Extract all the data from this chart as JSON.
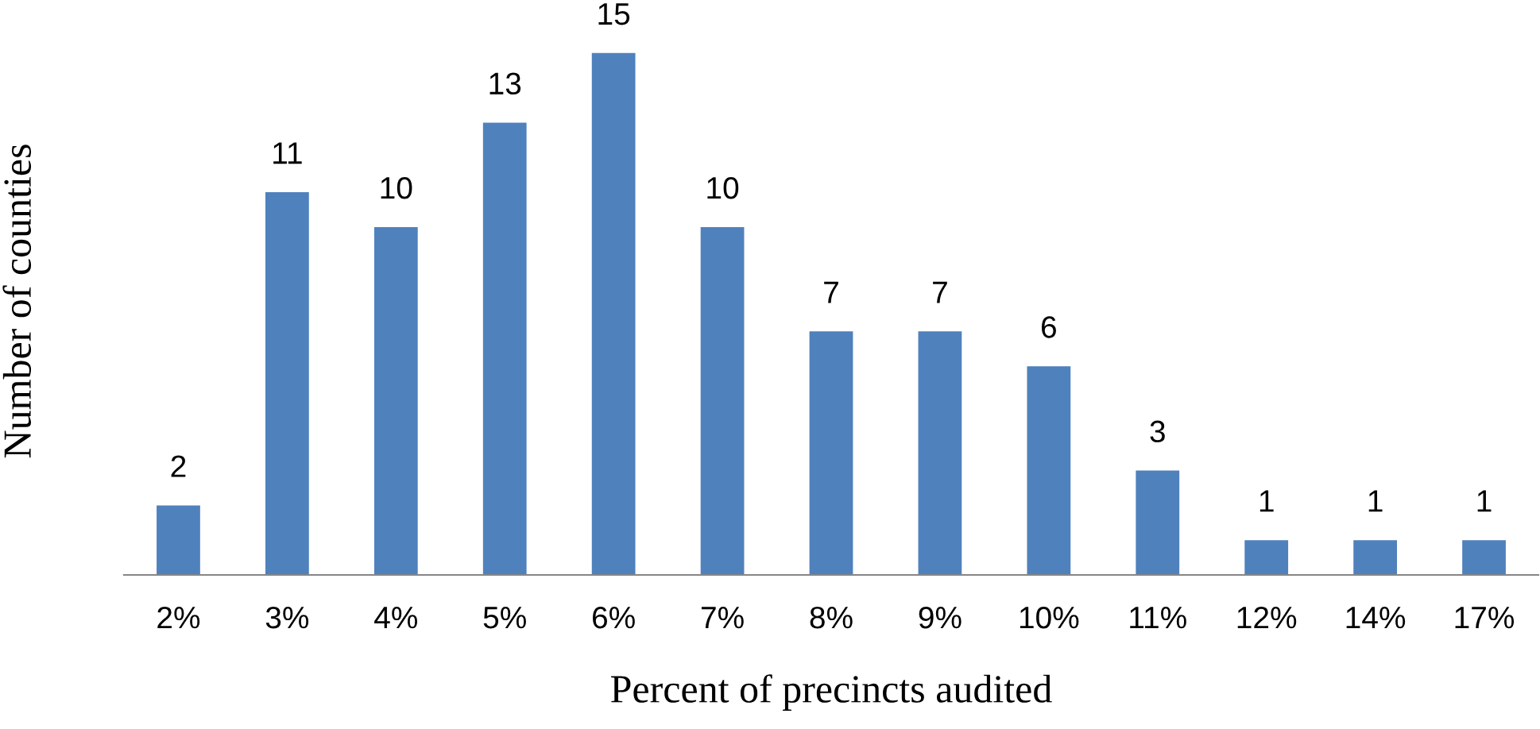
{
  "chart_data": {
    "type": "bar",
    "xlabel": "Percent of precincts audited",
    "ylabel": "Number of counties",
    "categories": [
      "2%",
      "3%",
      "4%",
      "5%",
      "6%",
      "7%",
      "8%",
      "9%",
      "10%",
      "11%",
      "12%",
      "14%",
      "17%"
    ],
    "values": [
      2,
      11,
      10,
      13,
      15,
      10,
      7,
      7,
      6,
      3,
      1,
      1,
      1
    ],
    "color": "#4f81bd",
    "data_labels": true,
    "tick_labels": "x",
    "grid": false,
    "legend": false
  }
}
